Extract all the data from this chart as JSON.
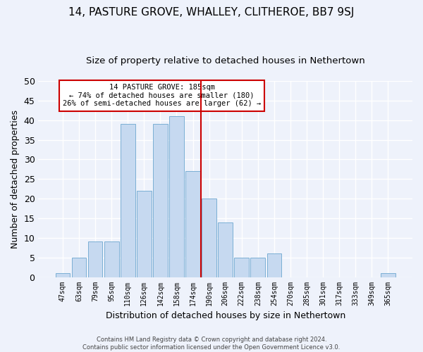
{
  "title": "14, PASTURE GROVE, WHALLEY, CLITHEROE, BB7 9SJ",
  "subtitle": "Size of property relative to detached houses in Nethertown",
  "xlabel": "Distribution of detached houses by size in Nethertown",
  "ylabel": "Number of detached properties",
  "footer_line1": "Contains HM Land Registry data © Crown copyright and database right 2024.",
  "footer_line2": "Contains public sector information licensed under the Open Government Licence v3.0.",
  "bar_labels": [
    "47sqm",
    "63sqm",
    "79sqm",
    "95sqm",
    "110sqm",
    "126sqm",
    "142sqm",
    "158sqm",
    "174sqm",
    "190sqm",
    "206sqm",
    "222sqm",
    "238sqm",
    "254sqm",
    "270sqm",
    "285sqm",
    "301sqm",
    "317sqm",
    "333sqm",
    "349sqm",
    "365sqm"
  ],
  "bar_values": [
    1,
    5,
    9,
    9,
    39,
    22,
    39,
    41,
    27,
    20,
    14,
    5,
    5,
    6,
    0,
    0,
    0,
    0,
    0,
    0,
    1
  ],
  "bar_color": "#c6d9f0",
  "bar_edge_color": "#7bafd4",
  "vline_color": "#cc0000",
  "annotation_box_color": "#cc0000",
  "property_label": "14 PASTURE GROVE: 185sqm",
  "pct_smaller": 74,
  "n_smaller": 180,
  "pct_larger": 26,
  "n_larger": 62,
  "ylim": [
    0,
    50
  ],
  "yticks": [
    0,
    5,
    10,
    15,
    20,
    25,
    30,
    35,
    40,
    45,
    50
  ],
  "bg_color": "#eef2fb",
  "grid_color": "#ffffff",
  "title_fontsize": 11,
  "subtitle_fontsize": 9.5,
  "tick_fontsize": 7,
  "ylabel_fontsize": 9,
  "xlabel_fontsize": 9,
  "footer_fontsize": 6,
  "annotation_fontsize": 7.5
}
